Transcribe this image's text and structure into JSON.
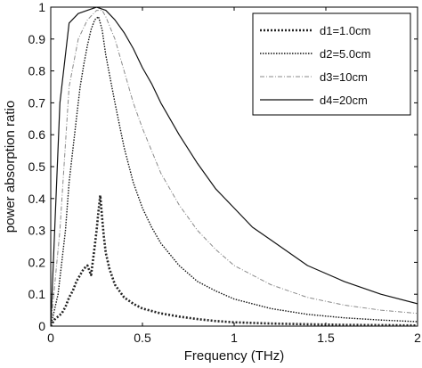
{
  "chart_data": {
    "type": "line",
    "title": "",
    "xlabel": "Frequency (THz)",
    "ylabel": "power absorption ratio",
    "xlim": [
      0,
      2
    ],
    "ylim": [
      0,
      1
    ],
    "x_ticks": [
      0,
      0.5,
      1,
      1.5,
      2
    ],
    "x_tick_labels": [
      "0",
      "0.5",
      "1",
      "1.5",
      "2"
    ],
    "y_ticks": [
      0,
      0.1,
      0.2,
      0.3,
      0.4,
      0.5,
      0.6,
      0.7,
      0.8,
      0.9,
      1
    ],
    "y_tick_labels": [
      "0",
      "0.1",
      "0.2",
      "0.3",
      "0.4",
      "0.5",
      "0.6",
      "0.7",
      "0.8",
      "0.9",
      "1"
    ],
    "grid": false,
    "legend_position": "top-right",
    "series": [
      {
        "name": "d1=1.0cm",
        "style": "thick-dotted",
        "color": "#222222",
        "x": [
          0,
          0.02,
          0.04,
          0.06,
          0.08,
          0.1,
          0.12,
          0.14,
          0.16,
          0.18,
          0.2,
          0.22,
          0.24,
          0.25,
          0.26,
          0.27,
          0.28,
          0.29,
          0.3,
          0.32,
          0.35,
          0.4,
          0.45,
          0.5,
          0.6,
          0.7,
          0.8,
          0.9,
          1,
          1.2,
          1.4,
          1.6,
          1.8,
          2
        ],
        "y": [
          0,
          0.02,
          0.03,
          0.04,
          0.06,
          0.09,
          0.11,
          0.14,
          0.16,
          0.18,
          0.19,
          0.16,
          0.25,
          0.3,
          0.36,
          0.41,
          0.34,
          0.28,
          0.23,
          0.18,
          0.13,
          0.09,
          0.07,
          0.055,
          0.04,
          0.03,
          0.022,
          0.016,
          0.012,
          0.008,
          0.006,
          0.004,
          0.003,
          0.002
        ]
      },
      {
        "name": "d2=5.0cm",
        "style": "dotted",
        "color": "#111111",
        "x": [
          0,
          0.02,
          0.04,
          0.06,
          0.08,
          0.1,
          0.12,
          0.14,
          0.16,
          0.18,
          0.2,
          0.22,
          0.24,
          0.26,
          0.28,
          0.3,
          0.35,
          0.4,
          0.45,
          0.5,
          0.55,
          0.6,
          0.7,
          0.8,
          0.9,
          1,
          1.2,
          1.4,
          1.6,
          1.8,
          2
        ],
        "y": [
          0,
          0.05,
          0.1,
          0.2,
          0.3,
          0.45,
          0.55,
          0.65,
          0.75,
          0.82,
          0.88,
          0.93,
          0.96,
          0.97,
          0.93,
          0.85,
          0.7,
          0.56,
          0.45,
          0.37,
          0.31,
          0.26,
          0.19,
          0.14,
          0.11,
          0.085,
          0.055,
          0.037,
          0.026,
          0.019,
          0.014
        ]
      },
      {
        "name": "d3=10cm",
        "style": "dash-dot-light",
        "color": "#8a8a8a",
        "x": [
          0,
          0.05,
          0.1,
          0.15,
          0.2,
          0.25,
          0.28,
          0.3,
          0.35,
          0.4,
          0.45,
          0.5,
          0.55,
          0.6,
          0.7,
          0.8,
          0.9,
          1,
          1.2,
          1.4,
          1.6,
          1.8,
          2
        ],
        "y": [
          0,
          0.3,
          0.75,
          0.9,
          0.96,
          0.99,
          0.99,
          0.97,
          0.9,
          0.8,
          0.7,
          0.62,
          0.55,
          0.48,
          0.38,
          0.3,
          0.24,
          0.19,
          0.13,
          0.09,
          0.066,
          0.05,
          0.04
        ]
      },
      {
        "name": "d4=20cm",
        "style": "solid",
        "color": "#111111",
        "x": [
          0,
          0.05,
          0.1,
          0.15,
          0.2,
          0.25,
          0.3,
          0.35,
          0.4,
          0.45,
          0.5,
          0.55,
          0.6,
          0.7,
          0.8,
          0.9,
          1,
          1.1,
          1.2,
          1.4,
          1.6,
          1.8,
          2
        ],
        "y": [
          0,
          0.7,
          0.95,
          0.98,
          0.99,
          1.0,
          0.99,
          0.96,
          0.92,
          0.87,
          0.81,
          0.76,
          0.7,
          0.6,
          0.51,
          0.43,
          0.37,
          0.31,
          0.27,
          0.19,
          0.14,
          0.1,
          0.07
        ]
      }
    ]
  }
}
